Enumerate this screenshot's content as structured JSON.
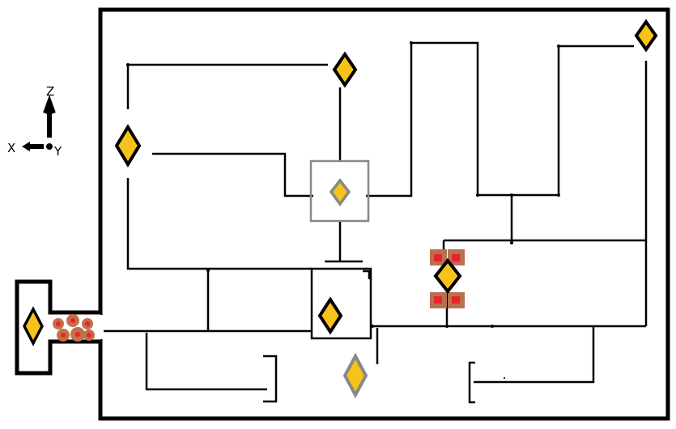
{
  "axis_indicator": {
    "z_label": "Z",
    "x_label": "X",
    "y_label": "Y"
  },
  "colors": {
    "background": "#ffffff",
    "line": "#000000",
    "node_fill": "#f7c21a",
    "node_outline": "#000000",
    "inactive_outline": "#808080",
    "marker_red": "#e8242a",
    "marker_brown": "#b87050"
  },
  "icons": {
    "node": "yellow-diamond",
    "inactive_node": "grey-outlined-diamond",
    "hazard": "red-dot-cluster",
    "marker": "red-square-on-brown-tile"
  }
}
